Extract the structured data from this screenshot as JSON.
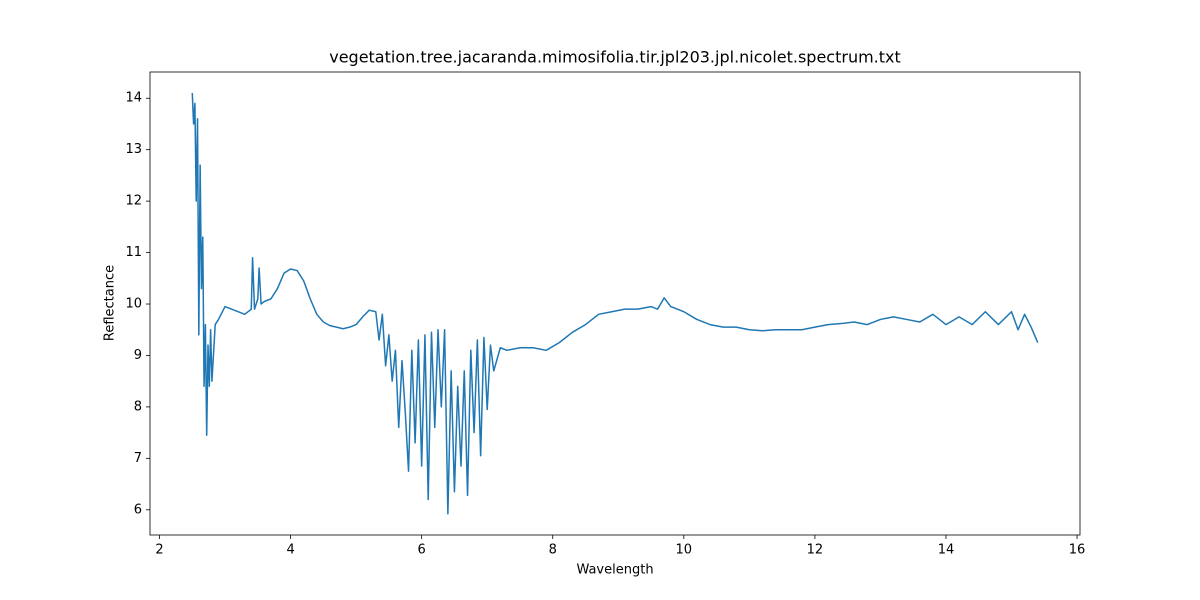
{
  "chart_data": {
    "type": "line",
    "title": "vegetation.tree.jacaranda.mimosifolia.tir.jpl203.jpl.nicolet.spectrum.txt",
    "x_label": "Wavelength",
    "y_label": "Reflectance",
    "x": [
      2.5,
      2.52,
      2.54,
      2.56,
      2.58,
      2.6,
      2.62,
      2.64,
      2.66,
      2.68,
      2.7,
      2.72,
      2.74,
      2.76,
      2.78,
      2.8,
      2.85,
      2.9,
      3.0,
      3.1,
      3.2,
      3.3,
      3.4,
      3.42,
      3.45,
      3.5,
      3.52,
      3.55,
      3.6,
      3.7,
      3.8,
      3.9,
      4.0,
      4.1,
      4.2,
      4.3,
      4.4,
      4.5,
      4.6,
      4.7,
      4.8,
      4.9,
      5.0,
      5.1,
      5.2,
      5.3,
      5.35,
      5.4,
      5.45,
      5.5,
      5.55,
      5.6,
      5.65,
      5.7,
      5.75,
      5.8,
      5.85,
      5.9,
      5.95,
      6.0,
      6.05,
      6.1,
      6.15,
      6.2,
      6.25,
      6.3,
      6.35,
      6.4,
      6.45,
      6.5,
      6.55,
      6.6,
      6.65,
      6.7,
      6.75,
      6.8,
      6.85,
      6.9,
      6.95,
      7.0,
      7.05,
      7.1,
      7.2,
      7.3,
      7.5,
      7.7,
      7.9,
      8.1,
      8.3,
      8.5,
      8.7,
      8.9,
      9.1,
      9.3,
      9.5,
      9.6,
      9.7,
      9.8,
      10.0,
      10.2,
      10.4,
      10.6,
      10.8,
      11.0,
      11.2,
      11.4,
      11.6,
      11.8,
      12.0,
      12.2,
      12.4,
      12.6,
      12.8,
      13.0,
      13.2,
      13.4,
      13.6,
      13.8,
      14.0,
      14.2,
      14.4,
      14.6,
      14.8,
      15.0,
      15.1,
      15.2,
      15.3,
      15.4
    ],
    "series": [
      {
        "name": "Reflectance",
        "color": "#1f77b4",
        "values": [
          14.1,
          13.5,
          13.9,
          12.0,
          13.6,
          9.4,
          12.7,
          10.3,
          11.3,
          8.4,
          9.6,
          7.45,
          9.2,
          8.4,
          9.5,
          8.5,
          9.6,
          9.7,
          9.95,
          9.9,
          9.85,
          9.8,
          9.9,
          10.9,
          9.9,
          10.1,
          10.7,
          10.0,
          10.05,
          10.1,
          10.3,
          10.6,
          10.68,
          10.65,
          10.45,
          10.1,
          9.8,
          9.65,
          9.58,
          9.55,
          9.52,
          9.55,
          9.6,
          9.75,
          9.88,
          9.85,
          9.3,
          9.8,
          8.8,
          9.4,
          8.5,
          9.1,
          7.6,
          8.9,
          7.9,
          6.75,
          9.1,
          7.3,
          9.3,
          6.85,
          9.4,
          6.2,
          9.45,
          7.6,
          9.5,
          8.0,
          9.5,
          5.92,
          8.7,
          6.35,
          8.4,
          6.85,
          8.7,
          6.28,
          9.1,
          7.5,
          9.3,
          7.05,
          9.35,
          7.95,
          9.2,
          8.7,
          9.15,
          9.1,
          9.15,
          9.15,
          9.1,
          9.25,
          9.45,
          9.6,
          9.8,
          9.85,
          9.9,
          9.9,
          9.95,
          9.9,
          10.12,
          9.95,
          9.85,
          9.7,
          9.6,
          9.55,
          9.55,
          9.5,
          9.48,
          9.5,
          9.5,
          9.5,
          9.55,
          9.6,
          9.62,
          9.65,
          9.6,
          9.7,
          9.75,
          9.7,
          9.65,
          9.8,
          9.6,
          9.75,
          9.6,
          9.85,
          9.6,
          9.85,
          9.5,
          9.8,
          9.55,
          9.25
        ]
      }
    ],
    "xlim": [
      1.855,
      16.045
    ],
    "ylim": [
      5.51,
      14.51
    ],
    "xticks": [
      2,
      4,
      6,
      8,
      10,
      12,
      14,
      16
    ],
    "yticks": [
      6,
      7,
      8,
      9,
      10,
      11,
      12,
      13,
      14
    ],
    "grid": false
  }
}
